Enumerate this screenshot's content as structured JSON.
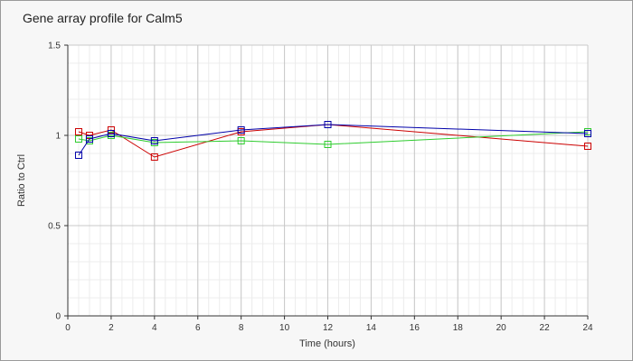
{
  "chart_data": {
    "type": "line",
    "title": "Gene array profile for Calm5",
    "xlabel": "Time (hours)",
    "ylabel": "Ratio to Ctrl",
    "xlim": [
      0,
      24
    ],
    "ylim": [
      0,
      1.5
    ],
    "x_ticks": [
      0,
      2,
      4,
      6,
      8,
      10,
      12,
      14,
      16,
      18,
      20,
      22,
      24
    ],
    "y_ticks": [
      0,
      0.5,
      1,
      1.5
    ],
    "y_tick_labels": [
      "0",
      "0.5",
      "1",
      "1.5"
    ],
    "grid": true,
    "minor_grid": true,
    "series": [
      {
        "color": "#cc0000",
        "x": [
          0.5,
          1,
          2,
          4,
          8,
          12,
          24
        ],
        "y": [
          1.02,
          1.0,
          1.03,
          0.88,
          1.02,
          1.06,
          0.94
        ]
      },
      {
        "color": "#2ecc2e",
        "x": [
          0.5,
          1,
          2,
          4,
          8,
          12,
          24
        ],
        "y": [
          0.98,
          0.97,
          1.0,
          0.96,
          0.97,
          0.95,
          1.02
        ]
      },
      {
        "color": "#0000aa",
        "x": [
          0.5,
          1,
          2,
          4,
          8,
          12,
          24
        ],
        "y": [
          0.89,
          0.98,
          1.01,
          0.97,
          1.03,
          1.06,
          1.01
        ]
      }
    ]
  }
}
